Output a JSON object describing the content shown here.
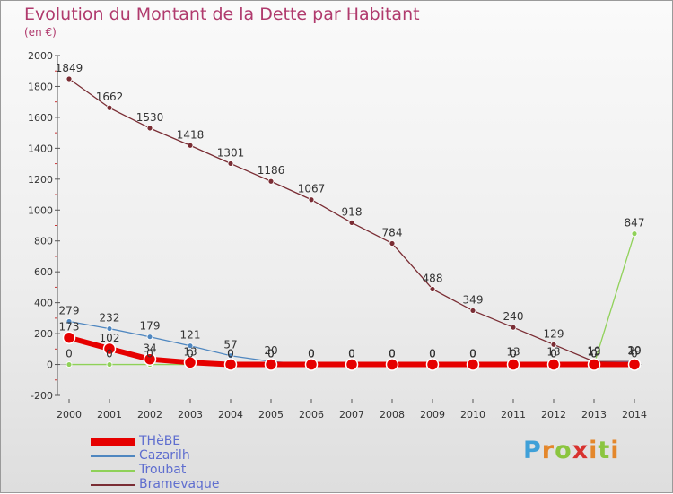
{
  "header": {
    "title": "Evolution du Montant de la Dette par Habitant",
    "subtitle": "(en €)"
  },
  "logo": {
    "letters": [
      "P",
      "r",
      "o",
      "x",
      "i",
      "t",
      "i"
    ],
    "colors": [
      "#3fa0d8",
      "#e4872b",
      "#8bc53f",
      "#d8322f",
      "#e4872b",
      "#8bc53f",
      "#e4872b"
    ]
  },
  "chart_data": {
    "type": "line",
    "x": [
      "2000",
      "2001",
      "2002",
      "2003",
      "2004",
      "2005",
      "2006",
      "2007",
      "2008",
      "2009",
      "2010",
      "2011",
      "2012",
      "2013",
      "2014"
    ],
    "y_ticks": [
      "-200",
      "0",
      "200",
      "400",
      "600",
      "800",
      "1000",
      "1200",
      "1400",
      "1600",
      "1800",
      "2000"
    ],
    "ylim": [
      -200,
      2000
    ],
    "grid": false,
    "legend": "bottom-left",
    "series": [
      {
        "name": "Bramevaque",
        "color": "#7a2d34",
        "values": [
          1849,
          1662,
          1530,
          1418,
          1301,
          1186,
          1067,
          918,
          784,
          488,
          349,
          240,
          129,
          19,
          20
        ],
        "labels": [
          "1849",
          "1662",
          "1530",
          "1418",
          "1301",
          "1186",
          "1067",
          "918",
          "784",
          "488",
          "349",
          "240",
          "129",
          "19",
          "20"
        ]
      },
      {
        "name": "Cazarilh",
        "color": "#4f87c0",
        "values": [
          279,
          232,
          179,
          121,
          57,
          20,
          0,
          0,
          0,
          0,
          0,
          13,
          13,
          13,
          19
        ],
        "labels": [
          "279",
          "232",
          "179",
          "121",
          "57",
          "20",
          "0",
          "0",
          "0",
          "0",
          "0",
          "13",
          "13",
          "13",
          "19"
        ]
      },
      {
        "name": "Troubat",
        "color": "#8fd158",
        "values": [
          0,
          0,
          0,
          0,
          0,
          0,
          0,
          0,
          0,
          0,
          0,
          0,
          0,
          0,
          847
        ],
        "labels": [
          "0",
          "0",
          "0",
          "0",
          "0",
          "0",
          "0",
          "0",
          "0",
          "0",
          "0",
          "0",
          "0",
          "0",
          "847"
        ]
      },
      {
        "name": "THèBE",
        "color": "#e60000",
        "values": [
          173,
          102,
          34,
          13,
          0,
          0,
          0,
          0,
          0,
          0,
          0,
          0,
          0,
          0,
          0
        ],
        "labels": [
          "173",
          "102",
          "34",
          "13",
          "0",
          "0",
          "0",
          "0",
          "0",
          "0",
          "0",
          "0",
          "0",
          "0",
          "0"
        ]
      }
    ]
  },
  "legend": {
    "items": [
      {
        "label": "THèBE",
        "color": "#e60000",
        "thick": true
      },
      {
        "label": "Cazarilh",
        "color": "#4f87c0",
        "thick": false
      },
      {
        "label": "Troubat",
        "color": "#8fd158",
        "thick": false
      },
      {
        "label": "Bramevaque",
        "color": "#7a2d34",
        "thick": false
      }
    ]
  }
}
